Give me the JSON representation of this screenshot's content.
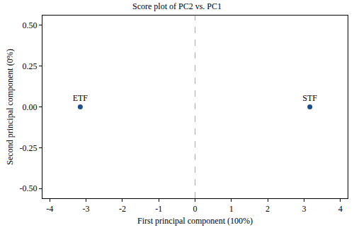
{
  "chart_data": {
    "type": "scatter",
    "title": "Score plot of PC2 vs. PC1",
    "x_label": "First principal component (100%)",
    "y_label": "Second principal component (0%)",
    "labels": [
      "ETF",
      "STF"
    ],
    "x": [
      -3.16,
      3.16
    ],
    "values": [
      0,
      0
    ],
    "color": "#1f4e8c",
    "marker": "circle",
    "xlim": [
      -4.2,
      4.2
    ],
    "xticks": [
      -4,
      -3,
      -2,
      -1,
      0,
      1,
      2,
      3,
      4
    ],
    "ylim": [
      -0.56,
      0.56
    ],
    "yticks": [
      {
        "value": -0.5,
        "label": "-0.50"
      },
      {
        "value": -0.25,
        "label": "-0.25"
      },
      {
        "value": 0,
        "label": "0.00"
      },
      {
        "value": 0.25,
        "label": "0.25"
      },
      {
        "value": 0.5,
        "label": "0.50"
      }
    ],
    "grid": false
  }
}
